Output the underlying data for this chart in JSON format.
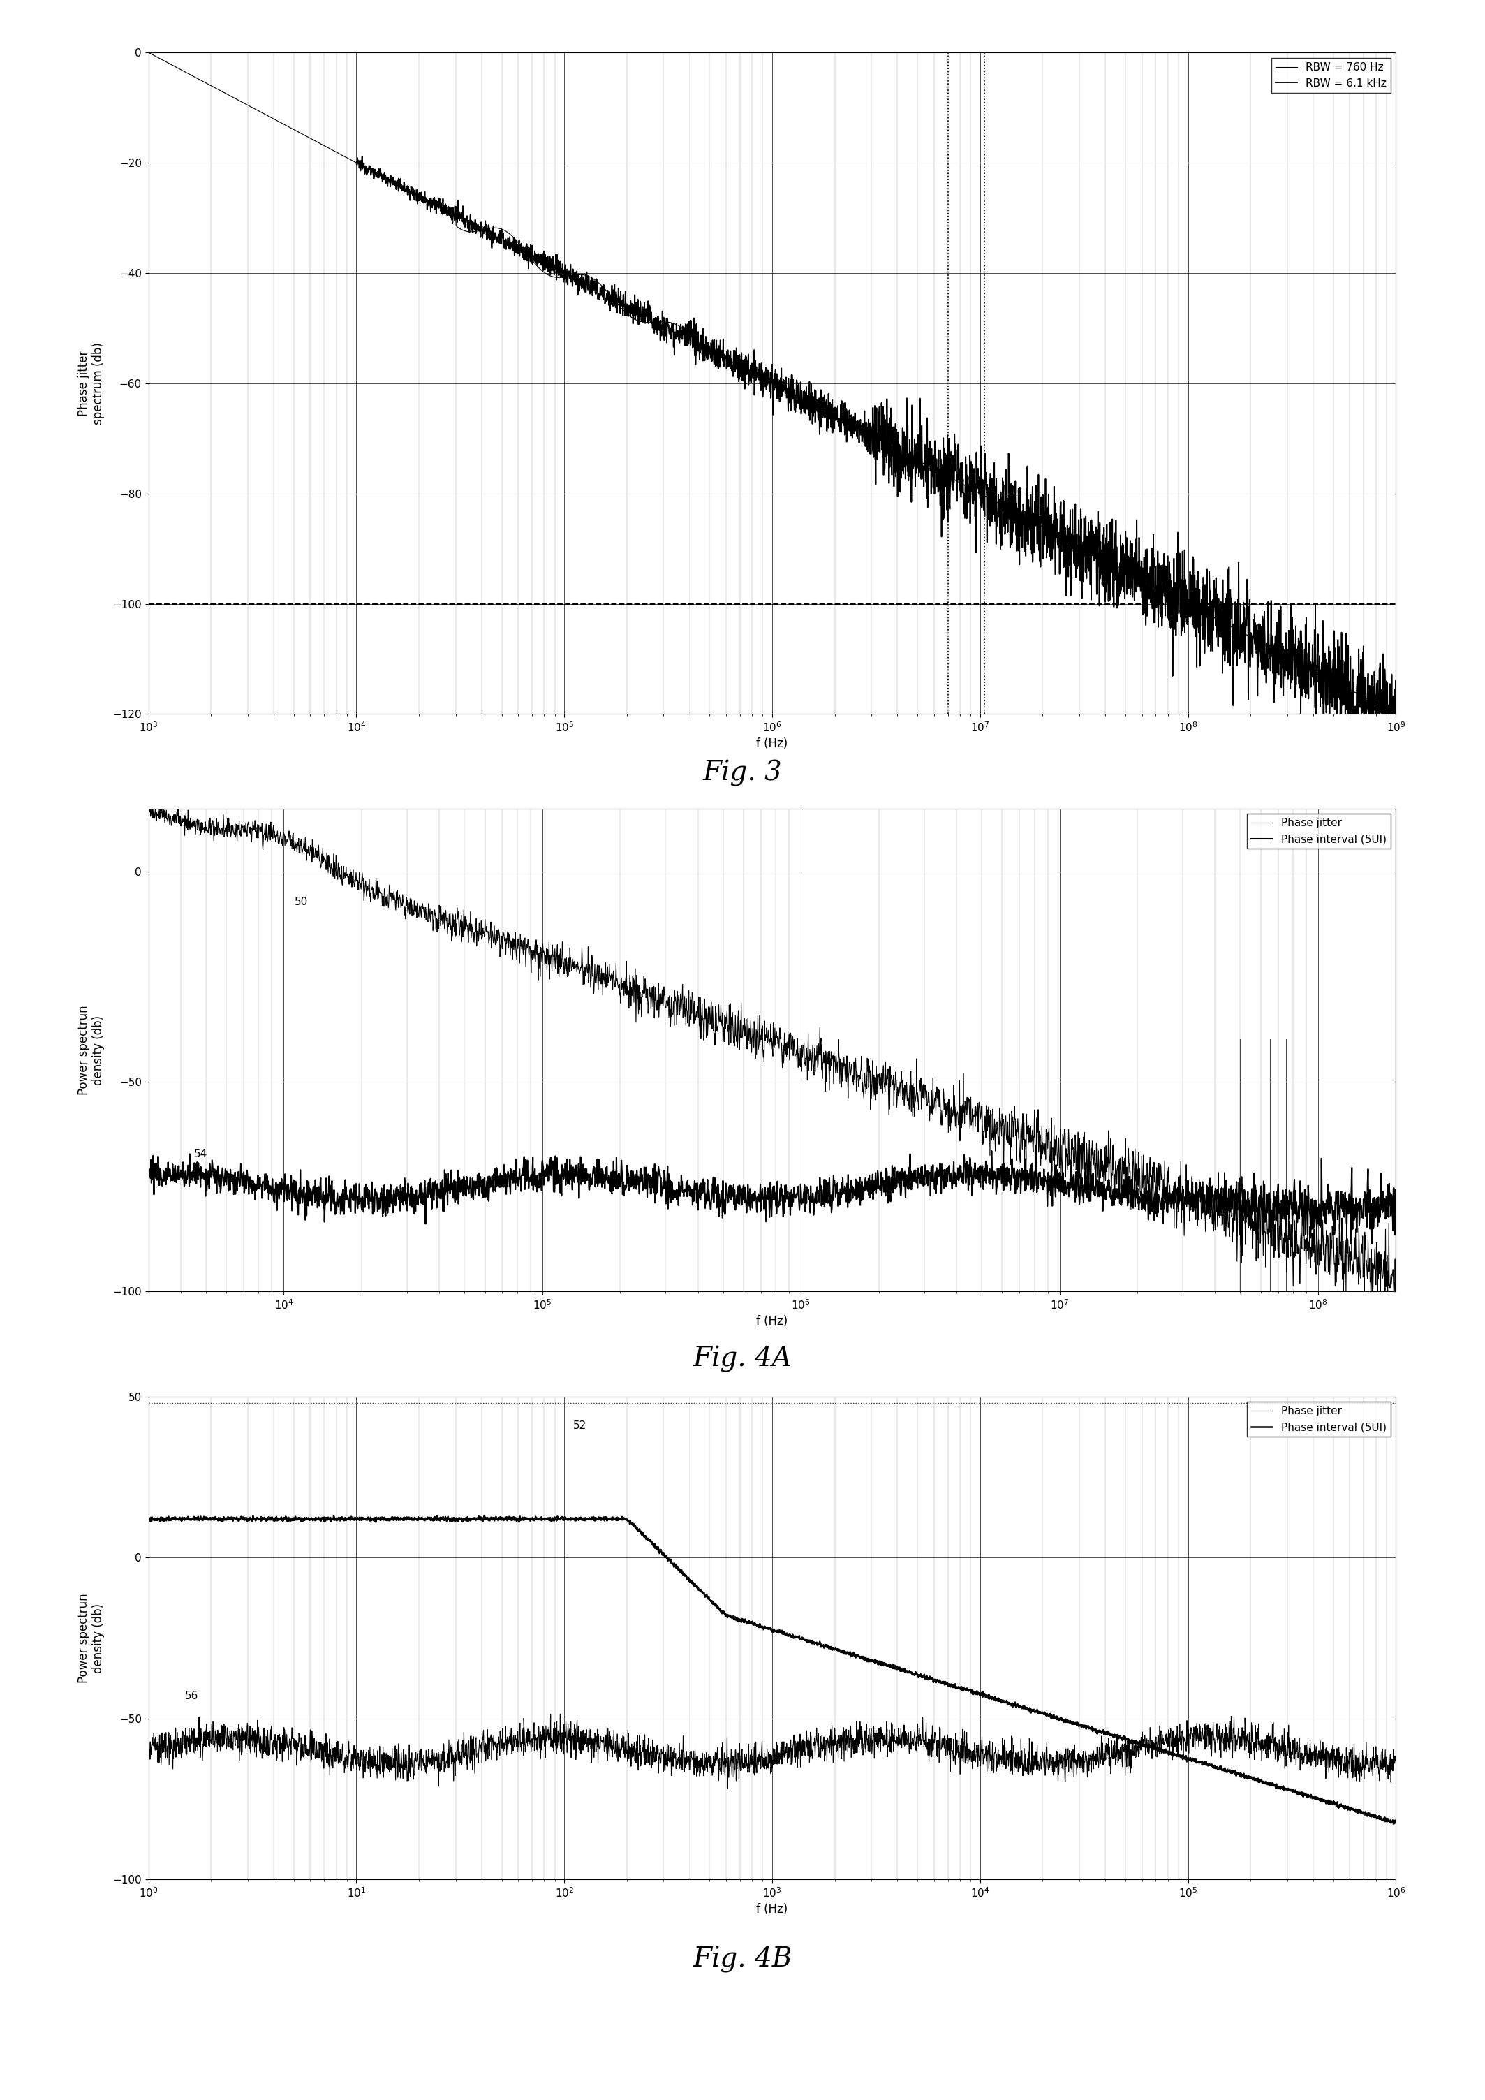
{
  "fig3": {
    "xlim": [
      1000.0,
      1000000000.0
    ],
    "ylim": [
      -120,
      0
    ],
    "yticks": [
      0,
      -20,
      -40,
      -60,
      -80,
      -100,
      -120
    ],
    "xlabel": "f (Hz)",
    "ylabel": "Phase jitter\nspectrum (db)",
    "legend": [
      "RBW = 760 Hz",
      "RBW = 6.1 kHz"
    ],
    "caption": "Fig. 3"
  },
  "fig4a": {
    "xlim": [
      3000.0,
      200000000.0
    ],
    "ylim": [
      -100,
      15
    ],
    "yticks": [
      0,
      -50,
      -100
    ],
    "xlabel": "f (Hz)",
    "ylabel": "Power spectrun\ndensity (db)",
    "legend": [
      "Phase jitter",
      "Phase interval (5UI)"
    ],
    "label_50": "50",
    "label_54": "54",
    "caption": "Fig. 4A"
  },
  "fig4b": {
    "xlim": [
      1.0,
      1000000.0
    ],
    "ylim": [
      -100,
      50
    ],
    "yticks": [
      50,
      0,
      -50,
      -100
    ],
    "xlabel": "f (Hz)",
    "ylabel": "Power spectrun\ndensity (db)",
    "legend": [
      "Phase jitter",
      "Phase interval (5UI)"
    ],
    "label_52": "52",
    "label_56": "56",
    "caption": "Fig. 4B"
  }
}
